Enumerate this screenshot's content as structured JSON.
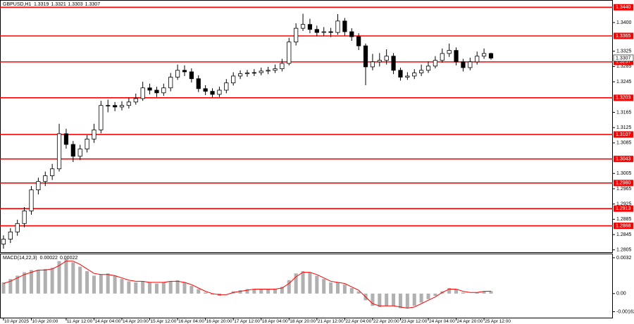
{
  "chart_data": [
    {
      "type": "candlestick",
      "title": "GBPUSD,H1",
      "color": "#000000",
      "level_color": "#ff0000",
      "open": [
        1.282,
        1.2833,
        1.2852,
        1.2874,
        1.2907,
        1.2962,
        1.2984,
        1.2999,
        1.3017,
        1.3109,
        1.3081,
        1.305,
        1.3069,
        1.3095,
        1.3119,
        1.3183,
        1.3183,
        1.3179,
        1.3183,
        1.3192,
        1.3201,
        1.3229,
        1.3223,
        1.3216,
        1.3229,
        1.3257,
        1.3275,
        1.3271,
        1.3253,
        1.3227,
        1.322,
        1.3212,
        1.3223,
        1.3242,
        1.326,
        1.3266,
        1.3268,
        1.3269,
        1.3273,
        1.3275,
        1.3279,
        1.3293,
        1.3349,
        1.3385,
        1.3395,
        1.3382,
        1.3374,
        1.3376,
        1.3374,
        1.3404,
        1.3376,
        1.3363,
        1.3339,
        1.3284,
        1.3297,
        1.3301,
        1.3312,
        1.3275,
        1.3257,
        1.326,
        1.3268,
        1.3275,
        1.3286,
        1.3301,
        1.3319,
        1.3327,
        1.3297,
        1.3282,
        1.3297,
        1.3312,
        1.3319
      ],
      "high": [
        1.2843,
        1.2862,
        1.2884,
        1.2917,
        1.2972,
        1.2994,
        1.301,
        1.303,
        1.3135,
        1.3122,
        1.309,
        1.308,
        1.3105,
        1.3135,
        1.3195,
        1.3198,
        1.3192,
        1.3194,
        1.3203,
        1.3214,
        1.3245,
        1.324,
        1.3232,
        1.324,
        1.3268,
        1.329,
        1.3288,
        1.328,
        1.3262,
        1.3236,
        1.3228,
        1.3232,
        1.3252,
        1.327,
        1.3275,
        1.3276,
        1.3278,
        1.3282,
        1.3284,
        1.329,
        1.3305,
        1.336,
        1.3398,
        1.3423,
        1.341,
        1.3392,
        1.3388,
        1.3386,
        1.3422,
        1.3412,
        1.3385,
        1.3372,
        1.3345,
        1.3318,
        1.332,
        1.333,
        1.332,
        1.3282,
        1.327,
        1.3278,
        1.329,
        1.3298,
        1.3312,
        1.3332,
        1.3345,
        1.3335,
        1.3305,
        1.3308,
        1.3324,
        1.3332,
        1.3321
      ],
      "low": [
        1.2808,
        1.2823,
        1.2842,
        1.2864,
        1.2897,
        1.295,
        1.2972,
        1.2988,
        1.301,
        1.307,
        1.3035,
        1.304,
        1.306,
        1.3085,
        1.311,
        1.3165,
        1.3168,
        1.317,
        1.3175,
        1.3185,
        1.3195,
        1.3212,
        1.3205,
        1.3208,
        1.322,
        1.325,
        1.326,
        1.3243,
        1.3218,
        1.321,
        1.3203,
        1.3205,
        1.3215,
        1.3235,
        1.3252,
        1.3258,
        1.326,
        1.3262,
        1.3265,
        1.3268,
        1.3272,
        1.3288,
        1.334,
        1.3378,
        1.3372,
        1.3364,
        1.3365,
        1.3362,
        1.3368,
        1.3366,
        1.3352,
        1.3328,
        1.3236,
        1.3275,
        1.3285,
        1.329,
        1.3265,
        1.3248,
        1.325,
        1.3252,
        1.326,
        1.3268,
        1.328,
        1.3295,
        1.331,
        1.3288,
        1.3272,
        1.3275,
        1.329,
        1.3305,
        1.3303
      ],
      "close": [
        1.2833,
        1.2852,
        1.2874,
        1.2907,
        1.2962,
        1.2984,
        1.2999,
        1.3017,
        1.3109,
        1.3081,
        1.305,
        1.3069,
        1.3095,
        1.3119,
        1.3183,
        1.3183,
        1.3179,
        1.3183,
        1.3192,
        1.3201,
        1.3229,
        1.3223,
        1.3216,
        1.3229,
        1.3257,
        1.3275,
        1.3271,
        1.3253,
        1.3227,
        1.322,
        1.3212,
        1.3223,
        1.3242,
        1.326,
        1.3266,
        1.3268,
        1.3269,
        1.3273,
        1.3275,
        1.3279,
        1.3293,
        1.3349,
        1.3385,
        1.3395,
        1.3382,
        1.3374,
        1.3376,
        1.3374,
        1.3404,
        1.3376,
        1.3363,
        1.3339,
        1.3284,
        1.3297,
        1.3301,
        1.3312,
        1.3275,
        1.3257,
        1.326,
        1.3268,
        1.3275,
        1.3286,
        1.3301,
        1.3319,
        1.3327,
        1.3297,
        1.3282,
        1.3297,
        1.3312,
        1.3319,
        1.3307
      ],
      "last_price": 1.3307,
      "ylim": [
        1.2799,
        1.3459
      ],
      "yticks": [
        {
          "value": 1.34,
          "label": "1.3400"
        },
        1.3325,
        1.3285,
        1.3245,
        1.3165,
        1.3125,
        1.3085,
        1.3005,
        1.2965,
        1.2925,
        1.2885,
        1.2845,
        1.2805
      ],
      "levels": [
        {
          "value": 1.344,
          "label": "1.3440"
        },
        1.3365,
        1.3297,
        1.3203,
        1.3107,
        1.3043,
        {
          "value": 1.298,
          "label": "1.2980"
        },
        1.2913,
        1.2868
      ],
      "xlim": [
        -0.5,
        87.5
      ],
      "xticks": [
        {
          "value": 0,
          "label": "10 Apr 2025"
        },
        {
          "value": 4,
          "label": "10 Apr 20:00"
        },
        {
          "value": 9,
          "label": "11 Apr 12:00"
        },
        {
          "value": 13,
          "label": "14 Apr 04:00"
        },
        {
          "value": 17,
          "label": "14 Apr 20:00"
        },
        {
          "value": 21,
          "label": "15 Apr 12:00"
        },
        {
          "value": 25,
          "label": "16 Apr 04:00"
        },
        {
          "value": 29,
          "label": "16 Apr 20:00"
        },
        {
          "value": 33,
          "label": "17 Apr 12:00"
        },
        {
          "value": 37,
          "label": "18 Apr 04:00"
        },
        {
          "value": 41,
          "label": "18 Apr 20:00"
        },
        {
          "value": 45,
          "label": "21 Apr 12:00"
        },
        {
          "value": 49,
          "label": "22 Apr 04:00"
        },
        {
          "value": 53,
          "label": "22 Apr 20:00"
        },
        {
          "value": 57,
          "label": "23 Apr 12:00"
        },
        {
          "value": 61,
          "label": "24 Apr 04:00"
        },
        {
          "value": 65,
          "label": "24 Apr 20:00"
        },
        {
          "value": 69,
          "label": "25 Apr 12:00"
        }
      ]
    },
    {
      "type": "macd",
      "title": "MACD(14,22,3)",
      "histogram": {
        "color": "#b0b0b0",
        "values": [
          0.001,
          0.0013,
          0.0016,
          0.0019,
          0.0021,
          0.0021,
          0.0022,
          0.0023,
          0.0029,
          0.0031,
          0.0028,
          0.0024,
          0.002,
          0.0016,
          0.0017,
          0.0018,
          0.0016,
          0.0013,
          0.0011,
          0.001,
          0.0011,
          0.001,
          0.0009,
          0.001,
          0.0011,
          0.0012,
          0.001,
          0.0007,
          0.0004,
          0.0001,
          -0.0001,
          -0.0002,
          0,
          0.0002,
          0.0003,
          0.0004,
          0.0004,
          0.0004,
          0.0004,
          0.0004,
          0.0006,
          0.0012,
          0.0018,
          0.002,
          0.0019,
          0.0016,
          0.0013,
          0.001,
          0.001,
          0.0008,
          0.0005,
          0.0002,
          -0.0006,
          -0.0011,
          -0.0012,
          -0.0011,
          -0.0011,
          -0.0013,
          -0.0013,
          -0.0011,
          -0.0008,
          -0.0005,
          -0.0002,
          0.0002,
          0.0005,
          0.0004,
          0.0001,
          0,
          0.0001,
          0.0002,
          0.00022
        ]
      },
      "signal": {
        "color": "#ff0000",
        "values": [
          0.0009,
          0.0011,
          0.0014,
          0.0017,
          0.0019,
          0.0021,
          0.0021,
          0.0022,
          0.0025,
          0.0029,
          0.0029,
          0.0026,
          0.0022,
          0.0018,
          0.0017,
          0.0017,
          0.0016,
          0.0014,
          0.0012,
          0.0011,
          0.0011,
          0.001,
          0.001,
          0.001,
          0.0011,
          0.0011,
          0.001,
          0.0008,
          0.0005,
          0.0002,
          0,
          -0.0001,
          -0.0001,
          0.0001,
          0.0002,
          0.0003,
          0.0004,
          0.0004,
          0.0004,
          0.0004,
          0.0005,
          0.0009,
          0.0015,
          0.0019,
          0.0019,
          0.0017,
          0.0014,
          0.0011,
          0.001,
          0.0009,
          0.0006,
          0.0003,
          -0.0003,
          -0.0009,
          -0.0011,
          -0.0011,
          -0.0011,
          -0.0012,
          -0.0013,
          -0.0012,
          -0.0009,
          -0.0006,
          -0.0003,
          0.0001,
          0.0004,
          0.0004,
          0.0002,
          0.0001,
          0.0001,
          0.0002,
          0.00022
        ]
      },
      "ylim": [
        -0.00215,
        0.00351
      ],
      "yticks": [
        0.0032,
        {
          "value": 0,
          "label": "0.00"
        },
        -0.00162
      ]
    }
  ]
}
